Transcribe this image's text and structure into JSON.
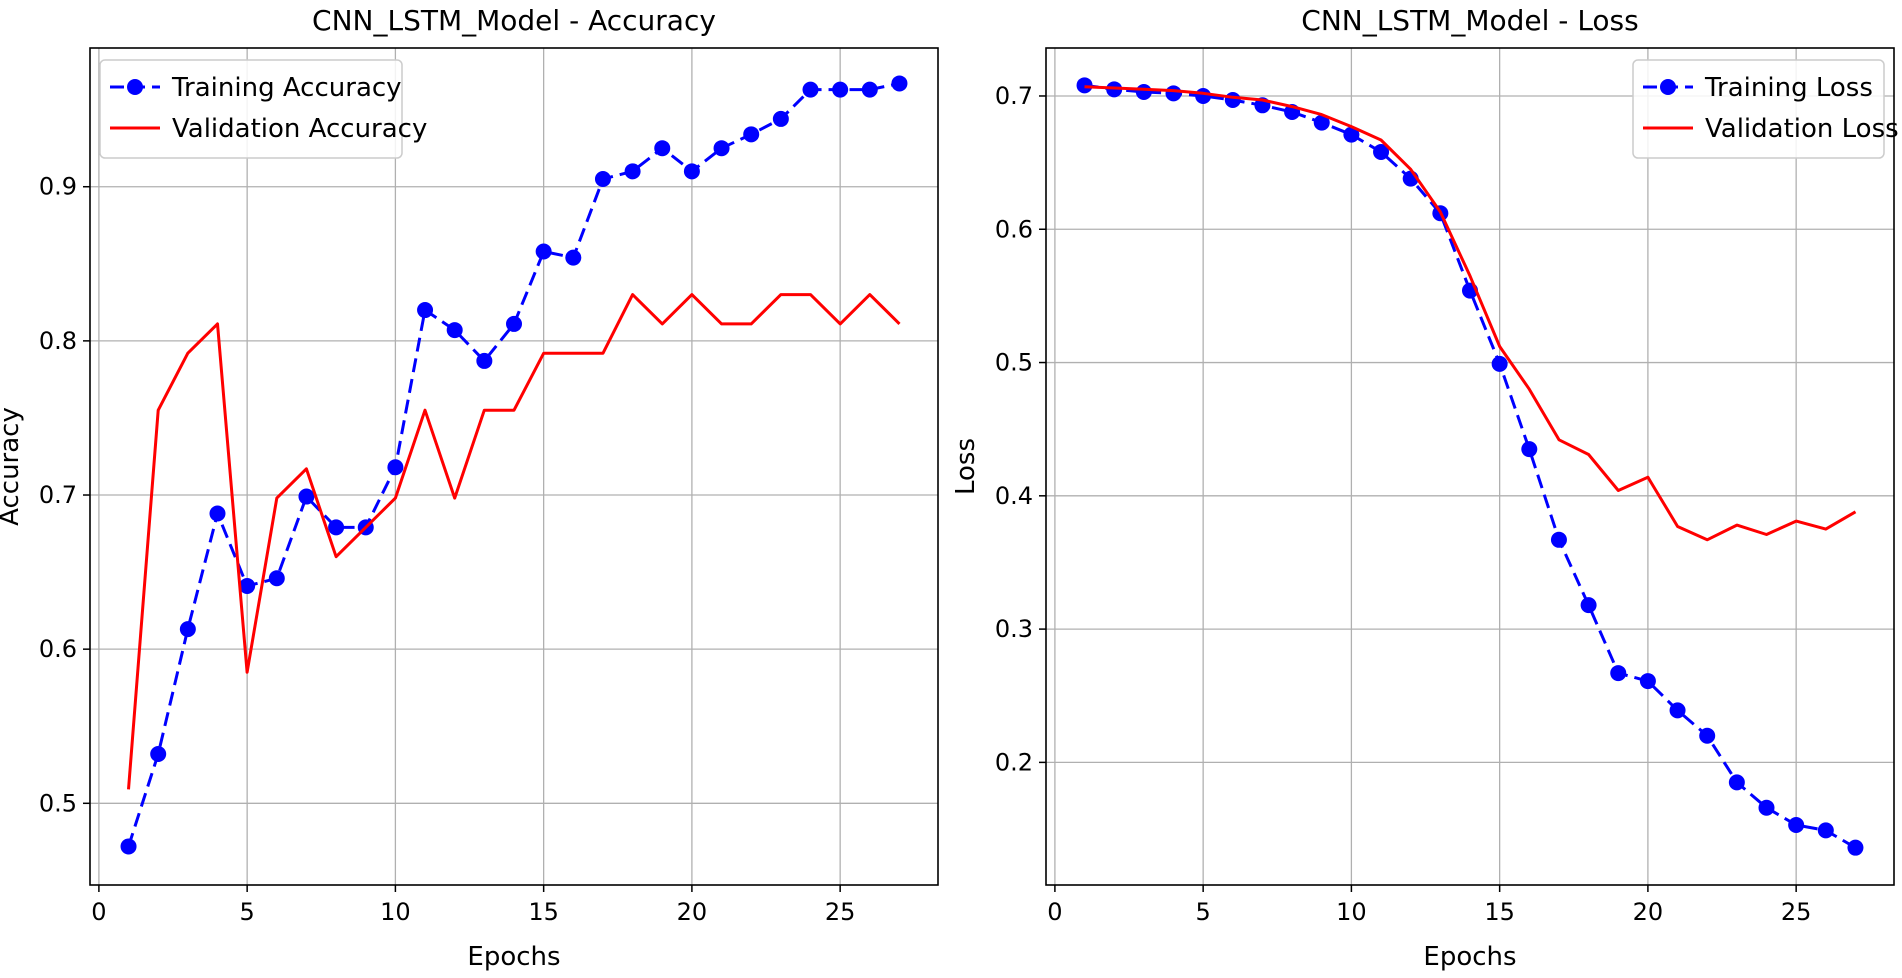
{
  "chart_data": [
    {
      "type": "line",
      "title": "CNN_LSTM_Model - Accuracy",
      "xlabel": "Epochs",
      "ylabel": "Accuracy",
      "xlim": [
        -0.3,
        28.3
      ],
      "ylim": [
        0.447,
        0.99
      ],
      "xticks": [
        0,
        5,
        10,
        15,
        20,
        25
      ],
      "yticks": [
        0.5,
        0.6,
        0.7,
        0.8,
        0.9
      ],
      "ytick_labels": [
        "0.5",
        "0.6",
        "0.7",
        "0.8",
        "0.9"
      ],
      "grid": true,
      "legend_position": "upper-left",
      "x": [
        1,
        2,
        3,
        4,
        5,
        6,
        7,
        8,
        9,
        10,
        11,
        12,
        13,
        14,
        15,
        16,
        17,
        18,
        19,
        20,
        21,
        22,
        23,
        24,
        25,
        26,
        27
      ],
      "series": [
        {
          "name": "Training Accuracy",
          "color": "#0000ff",
          "style": "dashed-markers",
          "values": [
            0.472,
            0.532,
            0.613,
            0.688,
            0.641,
            0.646,
            0.699,
            0.679,
            0.679,
            0.718,
            0.82,
            0.807,
            0.787,
            0.811,
            0.858,
            0.854,
            0.905,
            0.91,
            0.925,
            0.91,
            0.925,
            0.934,
            0.944,
            0.963,
            0.963,
            0.963,
            0.967
          ]
        },
        {
          "name": "Validation Accuracy",
          "color": "#ff0000",
          "style": "solid",
          "values": [
            0.509,
            0.755,
            0.792,
            0.811,
            0.585,
            0.698,
            0.717,
            0.66,
            0.679,
            0.698,
            0.755,
            0.698,
            0.755,
            0.755,
            0.792,
            0.792,
            0.792,
            0.83,
            0.811,
            0.83,
            0.811,
            0.811,
            0.83,
            0.83,
            0.811,
            0.83,
            0.811
          ]
        }
      ]
    },
    {
      "type": "line",
      "title": "CNN_LSTM_Model - Loss",
      "xlabel": "Epochs",
      "ylabel": "Loss",
      "xlim": [
        -0.3,
        28.3
      ],
      "ylim": [
        0.108,
        0.736
      ],
      "xticks": [
        0,
        5,
        10,
        15,
        20,
        25
      ],
      "yticks": [
        0.2,
        0.3,
        0.4,
        0.5,
        0.6,
        0.7
      ],
      "ytick_labels": [
        "0.2",
        "0.3",
        "0.4",
        "0.5",
        "0.6",
        "0.7"
      ],
      "grid": true,
      "legend_position": "upper-right",
      "x": [
        1,
        2,
        3,
        4,
        5,
        6,
        7,
        8,
        9,
        10,
        11,
        12,
        13,
        14,
        15,
        16,
        17,
        18,
        19,
        20,
        21,
        22,
        23,
        24,
        25,
        26,
        27
      ],
      "series": [
        {
          "name": "Training Loss",
          "color": "#0000ff",
          "style": "dashed-markers",
          "values": [
            0.708,
            0.705,
            0.703,
            0.702,
            0.7,
            0.697,
            0.693,
            0.688,
            0.68,
            0.671,
            0.658,
            0.638,
            0.612,
            0.554,
            0.499,
            0.435,
            0.367,
            0.318,
            0.267,
            0.261,
            0.239,
            0.22,
            0.185,
            0.166,
            0.153,
            0.149,
            0.136
          ]
        },
        {
          "name": "Validation Loss",
          "color": "#ff0000",
          "style": "solid",
          "values": [
            0.707,
            0.706,
            0.705,
            0.704,
            0.702,
            0.699,
            0.697,
            0.692,
            0.686,
            0.677,
            0.667,
            0.645,
            0.613,
            0.565,
            0.512,
            0.48,
            0.442,
            0.431,
            0.404,
            0.414,
            0.377,
            0.367,
            0.378,
            0.371,
            0.381,
            0.375,
            0.388
          ]
        }
      ]
    }
  ]
}
